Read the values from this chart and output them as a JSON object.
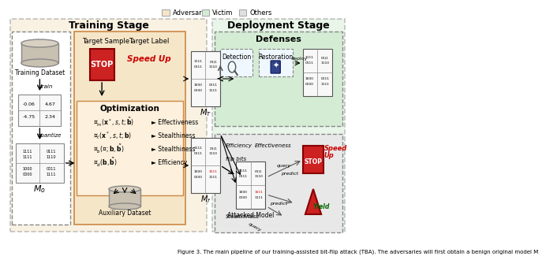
{
  "title_training": "Training Stage",
  "title_deployment": "Deployment Stage",
  "legend_items": [
    "Adversary",
    "Victim",
    "Others"
  ],
  "legend_colors": [
    "#f5deb3",
    "#c8e6c9",
    "#d3d3d3"
  ],
  "color_adversary": "#f5e6c8",
  "color_victim": "#d4ecd4",
  "color_others": "#e8e8e8",
  "color_optimization_bg": "#f5e6c8",
  "color_training_outer": "#f5e6c8",
  "color_deployment_outer": "#d4ecd4",
  "color_defenses_bg": "#d4ecd4",
  "color_attacked_bg": "#e8e8e8",
  "color_red": "#cc0000",
  "color_green": "#006600",
  "color_orange": "#e87722",
  "caption": "Figure 3. The main pipeline of our training-assisted bit-flip attack (TBA). The adversaries will first obtain a benign original model M"
}
